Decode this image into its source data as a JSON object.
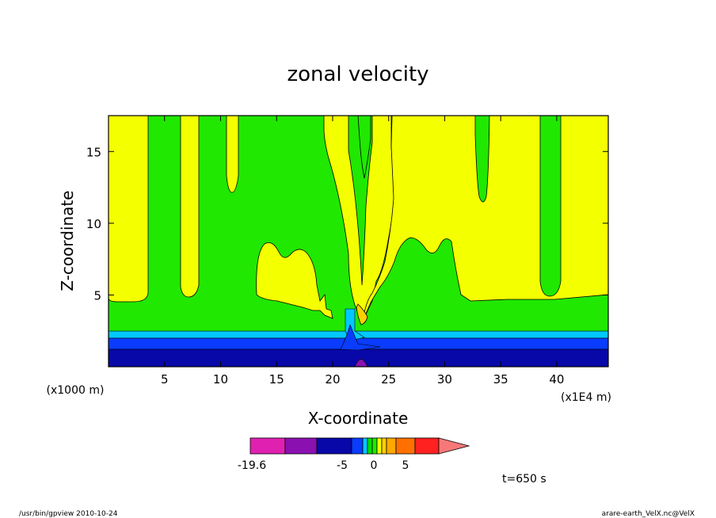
{
  "chart_data": {
    "type": "heatmap",
    "title": "zonal velocity",
    "xlabel": "X-coordinate",
    "ylabel": "Z-coordinate",
    "x_unit": "(x1E4 m)",
    "y_unit": "(x1000 m)",
    "xlim": [
      0,
      44.6
    ],
    "ylim": [
      0,
      17.5
    ],
    "x_ticks": [
      5,
      10,
      15,
      20,
      25,
      30,
      35,
      40
    ],
    "y_ticks": [
      5,
      10,
      15
    ],
    "colorbar": {
      "levels": [
        "-19.6",
        "-5",
        "0",
        "5"
      ],
      "colors": [
        "#e020b0",
        "#8a10b0",
        "#0808a8",
        "#0a3cff",
        "#00c8ff",
        "#00e000",
        "#20e800",
        "#f4ff00",
        "#ffd000",
        "#ffa800",
        "#ff7000",
        "#ff2020",
        "#f87878"
      ],
      "extend": "max"
    },
    "time_label": "t=650 s",
    "contour_regions": [
      {
        "color": "#f4ff00",
        "description": "upper weak positive flow, z > ~5"
      },
      {
        "color": "#20e800",
        "description": "near-zero flow band and plumes"
      },
      {
        "color": "#00c8ff",
        "description": "negative near z~2.5"
      },
      {
        "color": "#0a3cff",
        "description": "negative z~1.2-2.2"
      },
      {
        "color": "#0808a8",
        "description": "strong negative near surface"
      },
      {
        "color": "#8a10b0",
        "description": "min near x~22.5"
      }
    ]
  },
  "footer": {
    "left": "/usr/bin/gpview   2010-10-24",
    "right": "arare-earth_VelX.nc@VelX"
  }
}
